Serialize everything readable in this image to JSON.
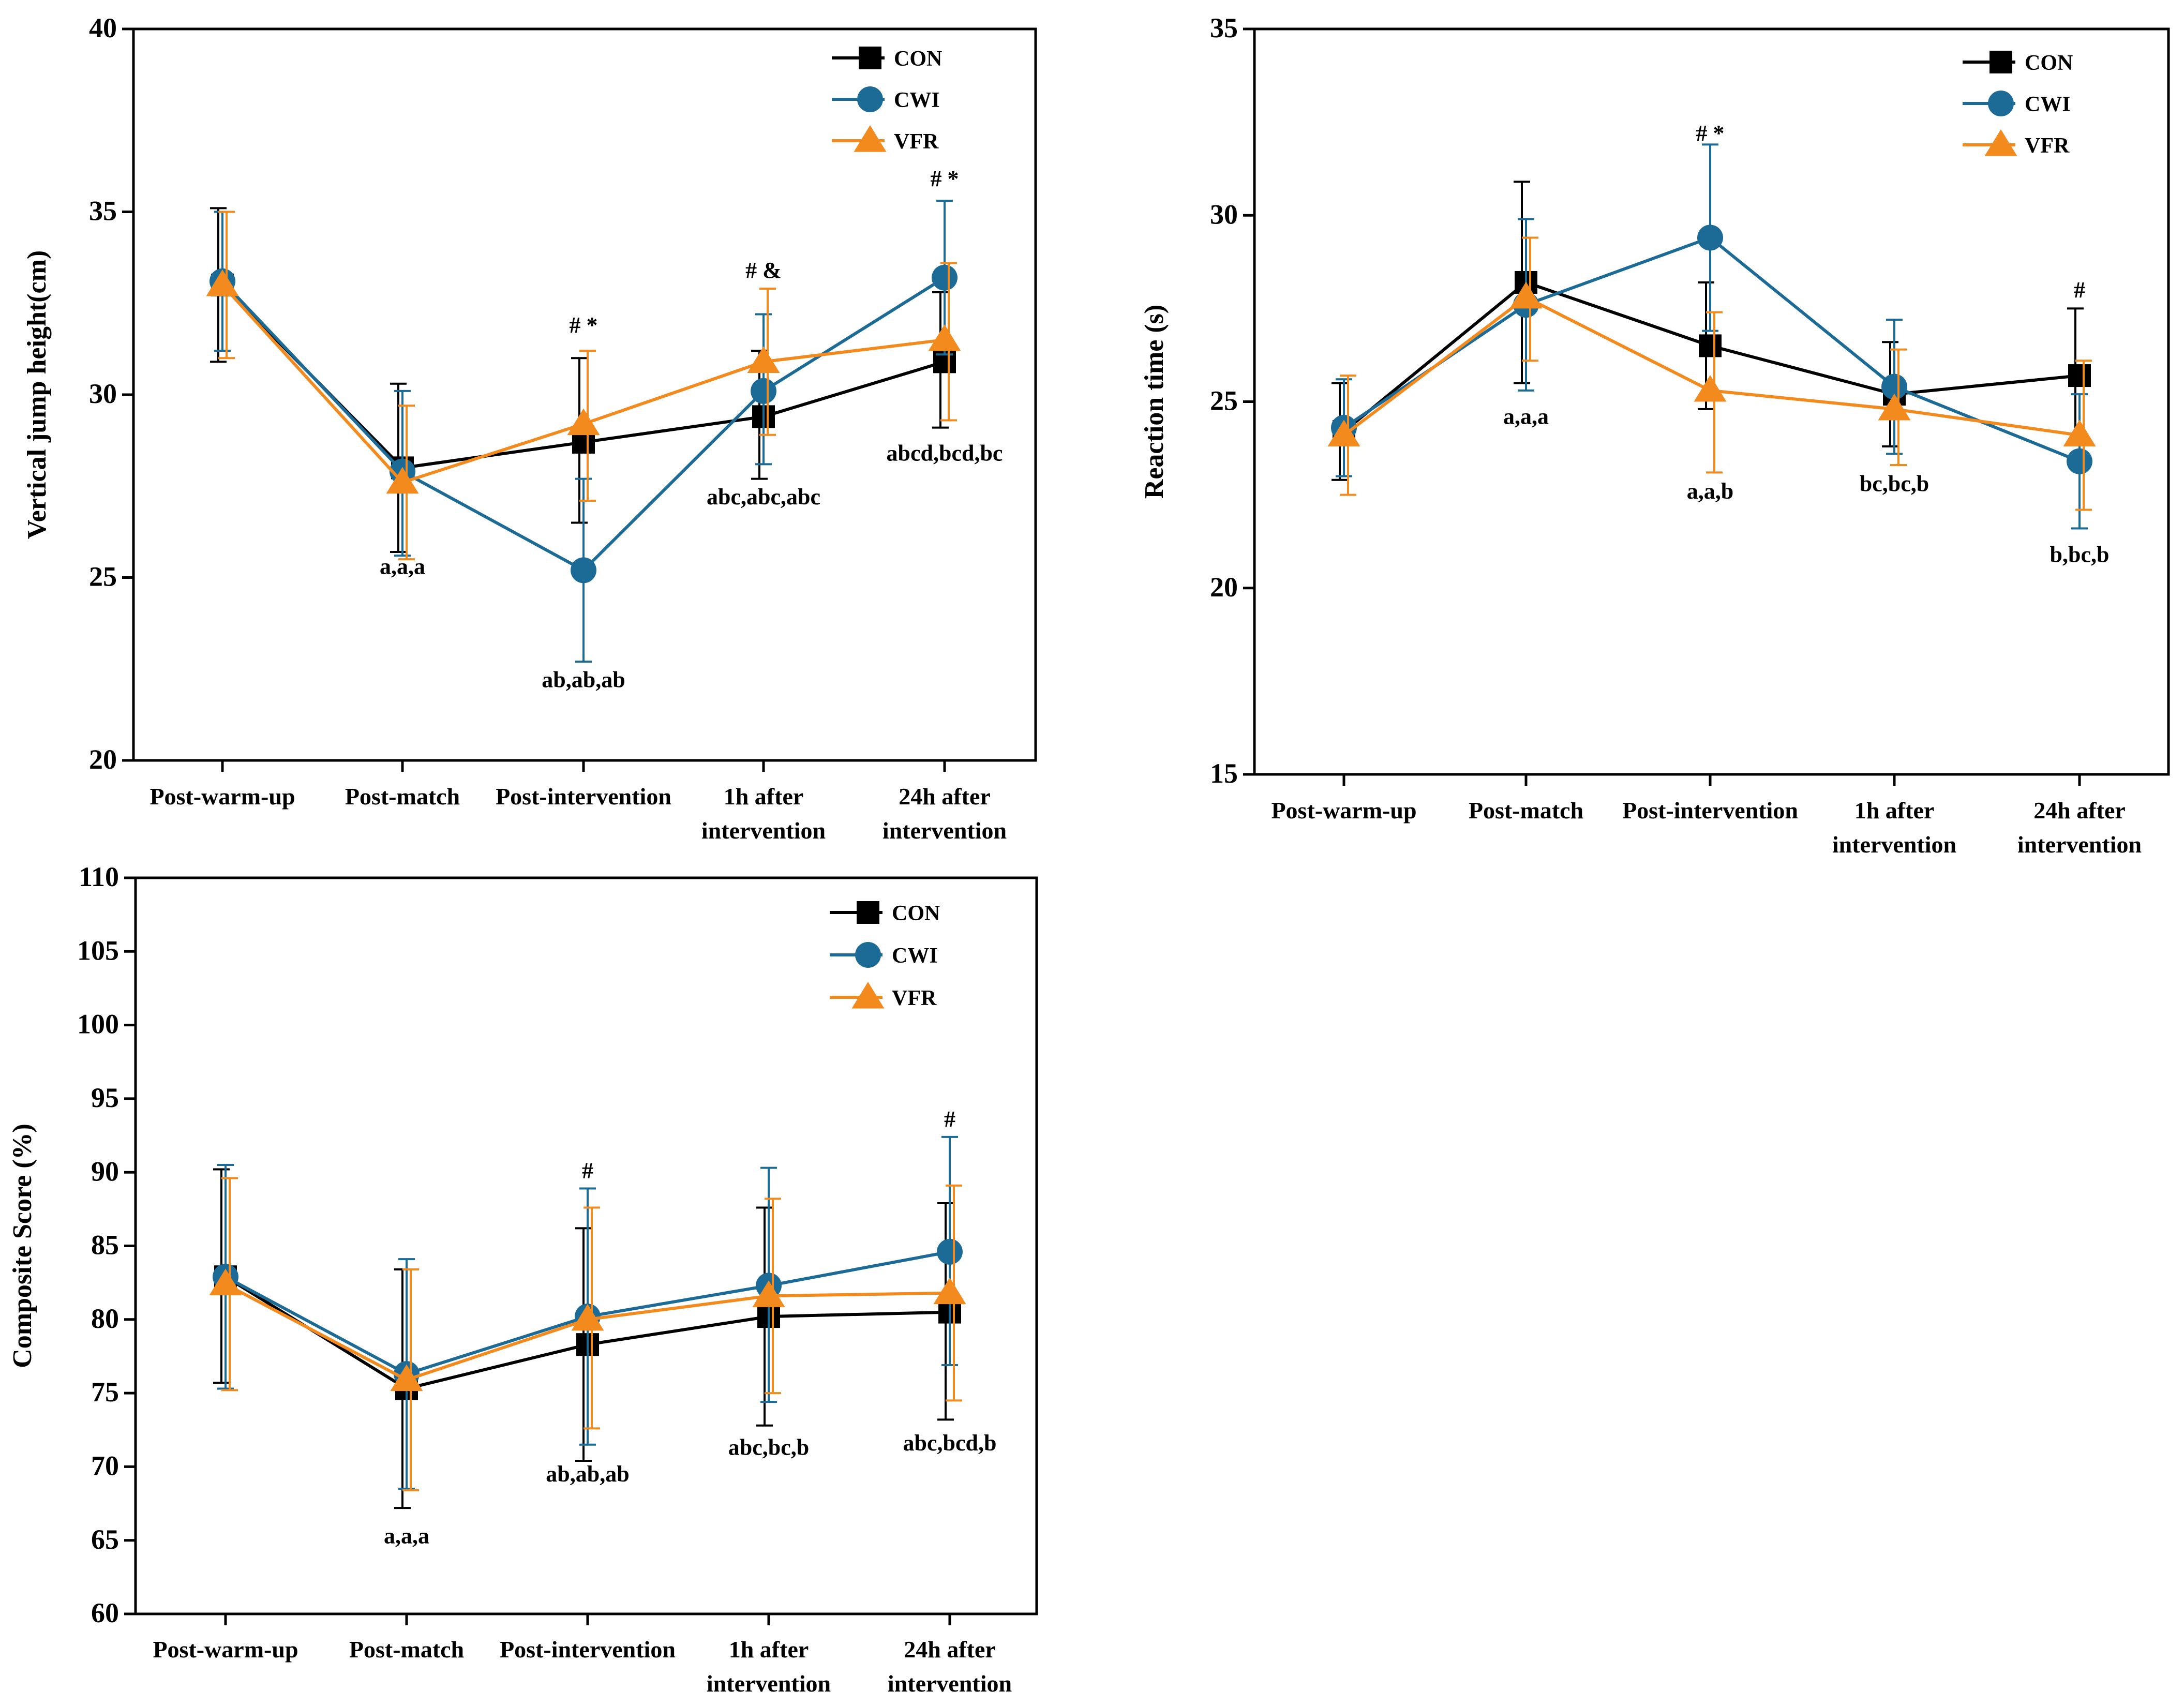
{
  "chart_data": [
    {
      "type": "line",
      "id": "vertical-jump",
      "ylabel": "Vertical jump height(cm)",
      "ylim": [
        20,
        40
      ],
      "yticks": [
        20,
        25,
        30,
        35,
        40
      ],
      "categories": [
        "Post-warm-up",
        "Post-match",
        "Post-intervention",
        "1h after\nintervention",
        "24h after\nintervention"
      ],
      "series": [
        {
          "name": "CON",
          "marker": "square",
          "color": "#000000",
          "values": [
            33.0,
            28.0,
            28.7,
            29.4,
            30.9
          ],
          "err_hi": [
            35.1,
            30.3,
            31.0,
            31.2,
            32.8
          ],
          "err_lo": [
            30.9,
            25.7,
            26.5,
            27.7,
            29.1
          ]
        },
        {
          "name": "CWI",
          "marker": "circle",
          "color": "#1c6a96",
          "values": [
            33.1,
            27.9,
            25.2,
            30.1,
            33.2
          ],
          "err_hi": [
            35.0,
            30.1,
            27.7,
            32.2,
            35.3
          ],
          "err_lo": [
            31.2,
            25.6,
            22.7,
            28.1,
            31.1
          ]
        },
        {
          "name": "VFR",
          "marker": "triangle",
          "color": "#f28a1e",
          "values": [
            33.0,
            27.6,
            29.2,
            30.9,
            31.5
          ],
          "err_hi": [
            35.0,
            29.7,
            31.2,
            32.9,
            33.6
          ],
          "err_lo": [
            31.0,
            25.5,
            27.1,
            28.9,
            29.3
          ]
        }
      ],
      "annotations": [
        {
          "text": "a,a,a",
          "x": 1,
          "y": 25.1
        },
        {
          "text": "# *",
          "x": 2,
          "y": 31.7
        },
        {
          "text": "ab,ab,ab",
          "x": 2,
          "y": 22.0
        },
        {
          "text": "# &",
          "x": 3,
          "y": 33.2
        },
        {
          "text": "abc,abc,abc",
          "x": 3,
          "y": 27.0
        },
        {
          "text": "# *",
          "x": 4,
          "y": 35.7
        },
        {
          "text": "abcd,bcd,bc",
          "x": 4,
          "y": 28.2
        }
      ]
    },
    {
      "type": "line",
      "id": "reaction-time",
      "ylabel": "Reaction time (s)",
      "ylim": [
        15,
        35
      ],
      "yticks": [
        15,
        20,
        25,
        30,
        35
      ],
      "categories": [
        "Post-warm-up",
        "Post-match",
        "Post-intervention",
        "1h after\nintervention",
        "24h after\nintervention"
      ],
      "series": [
        {
          "name": "CON",
          "marker": "square",
          "color": "#000000",
          "values": [
            24.2,
            28.2,
            26.5,
            25.2,
            25.7
          ],
          "err_hi": [
            25.5,
            30.9,
            28.2,
            26.6,
            27.5
          ],
          "err_lo": [
            22.9,
            25.5,
            24.8,
            23.8,
            23.9
          ]
        },
        {
          "name": "CWI",
          "marker": "circle",
          "color": "#1c6a96",
          "values": [
            24.3,
            27.6,
            29.4,
            25.4,
            23.4
          ],
          "err_hi": [
            25.6,
            29.9,
            31.9,
            27.2,
            25.2
          ],
          "err_lo": [
            23.0,
            25.3,
            26.9,
            23.6,
            21.6
          ]
        },
        {
          "name": "VFR",
          "marker": "triangle",
          "color": "#f28a1e",
          "values": [
            24.1,
            27.8,
            25.3,
            24.8,
            24.1
          ],
          "err_hi": [
            25.7,
            29.4,
            27.4,
            26.4,
            26.1
          ],
          "err_lo": [
            22.5,
            26.1,
            23.1,
            23.3,
            22.1
          ]
        }
      ],
      "annotations": [
        {
          "text": "a,a,a",
          "x": 1,
          "y": 24.4
        },
        {
          "text": "# *",
          "x": 2,
          "y": 32.0
        },
        {
          "text": "a,a,b",
          "x": 2,
          "y": 22.4
        },
        {
          "text": "bc,bc,b",
          "x": 3,
          "y": 22.6
        },
        {
          "text": "#",
          "x": 4,
          "y": 27.8
        },
        {
          "text": "b,bc,b",
          "x": 4,
          "y": 20.7
        }
      ]
    },
    {
      "type": "line",
      "id": "composite-score",
      "ylabel": "Composite Score (%)",
      "ylim": [
        60,
        110
      ],
      "yticks": [
        60,
        65,
        70,
        75,
        80,
        85,
        90,
        95,
        100,
        105,
        110
      ],
      "categories": [
        "Post-warm-up",
        "Post-match",
        "Post-intervention",
        "1h after\nintervention",
        "24h after\nintervention"
      ],
      "series": [
        {
          "name": "CON",
          "marker": "square",
          "color": "#000000",
          "values": [
            82.9,
            75.3,
            78.3,
            80.2,
            80.5
          ],
          "err_hi": [
            90.2,
            83.4,
            86.2,
            87.6,
            87.9
          ],
          "err_lo": [
            75.7,
            67.2,
            70.4,
            72.8,
            73.2
          ]
        },
        {
          "name": "CWI",
          "marker": "circle",
          "color": "#1c6a96",
          "values": [
            82.9,
            76.3,
            80.2,
            82.3,
            84.6
          ],
          "err_hi": [
            90.5,
            84.1,
            88.9,
            90.3,
            92.4
          ],
          "err_lo": [
            75.3,
            68.5,
            71.5,
            74.4,
            76.9
          ]
        },
        {
          "name": "VFR",
          "marker": "triangle",
          "color": "#f28a1e",
          "values": [
            82.4,
            75.9,
            80.0,
            81.6,
            81.8
          ],
          "err_hi": [
            89.6,
            83.4,
            87.6,
            88.2,
            89.1
          ],
          "err_lo": [
            75.2,
            68.4,
            72.6,
            75.0,
            74.5
          ]
        }
      ],
      "annotations": [
        {
          "text": "a,a,a",
          "x": 1,
          "y": 64.8
        },
        {
          "text": "#",
          "x": 2,
          "y": 89.6
        },
        {
          "text": "ab,ab,ab",
          "x": 2,
          "y": 69.0
        },
        {
          "text": "abc,bc,b",
          "x": 3,
          "y": 70.8
        },
        {
          "text": "#",
          "x": 4,
          "y": 93.1
        },
        {
          "text": "abc,bcd,b",
          "x": 4,
          "y": 71.1
        }
      ]
    }
  ]
}
